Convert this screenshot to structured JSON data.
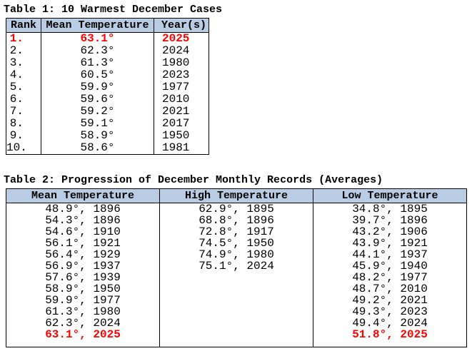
{
  "colors": {
    "header_bg": "#b8cce4",
    "border": "#000000",
    "text": "#000000",
    "record": "#ff0000",
    "background": "#ffffff"
  },
  "table1": {
    "title": "Table 1: 10 Warmest December Cases",
    "columns": [
      "Rank",
      "Mean Temperature",
      "Year(s)"
    ],
    "rows": [
      {
        "rank": "1.",
        "temp": "63.1°",
        "year": "2025",
        "record": true
      },
      {
        "rank": "2.",
        "temp": "62.3°",
        "year": "2024",
        "record": false
      },
      {
        "rank": "3.",
        "temp": "61.3°",
        "year": "1980",
        "record": false
      },
      {
        "rank": "4.",
        "temp": "60.5°",
        "year": "2023",
        "record": false
      },
      {
        "rank": "5.",
        "temp": "59.9°",
        "year": "1977",
        "record": false
      },
      {
        "rank": "6.",
        "temp": "59.6°",
        "year": "2010",
        "record": false
      },
      {
        "rank": "7.",
        "temp": "59.2°",
        "year": "2021",
        "record": false
      },
      {
        "rank": "8.",
        "temp": "59.1°",
        "year": "2017",
        "record": false
      },
      {
        "rank": "9.",
        "temp": "58.9°",
        "year": "1950",
        "record": false
      },
      {
        "rank": "10.",
        "temp": "58.6°",
        "year": "1981",
        "record": false
      }
    ]
  },
  "table2": {
    "title": "Table 2: Progression of December Monthly Records (Averages)",
    "columns": [
      "Mean Temperature",
      "High Temperature",
      "Low Temperature"
    ],
    "columns_data": {
      "mean": [
        "48.9°, 1896",
        "54.3°, 1896",
        "54.6°, 1910",
        "56.1°, 1921",
        "56.4°, 1929",
        "56.9°, 1937",
        "57.6°, 1939",
        "58.9°, 1950",
        "59.9°, 1977",
        "61.3°, 1980",
        "62.3°, 2024",
        "63.1°, 2025"
      ],
      "high": [
        "62.9°, 1895",
        "68.8°, 1896",
        "72.8°, 1917",
        "74.5°, 1950",
        "74.9°, 1980",
        "75.1°, 2024"
      ],
      "low": [
        "34.8°, 1895",
        "39.7°, 1896",
        "43.2°, 1906",
        "43.9°, 1921",
        "44.1°, 1937",
        "45.9°, 1940",
        "48.2°, 1977",
        "48.7°, 2010",
        "49.2°, 2021",
        "49.3°, 2023",
        "49.4°, 2024",
        "51.8°, 2025"
      ]
    },
    "record_entries": [
      "63.1°, 2025",
      "51.8°, 2025"
    ]
  }
}
